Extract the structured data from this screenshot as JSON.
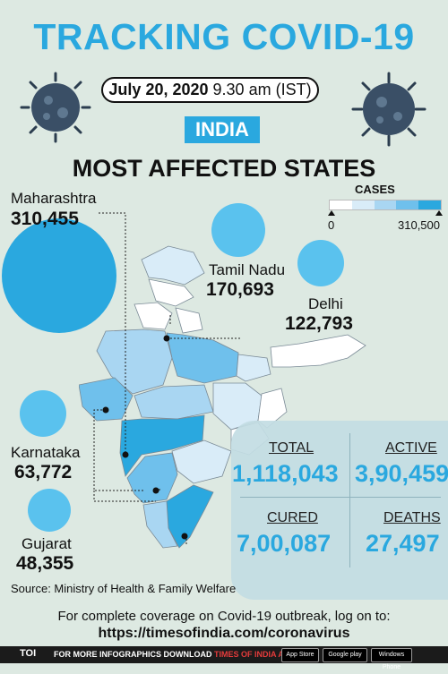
{
  "header": {
    "title": "TRACKING COVID-19",
    "date": "July 20, 2020",
    "time": "9.30 am (IST)",
    "country": "INDIA",
    "subtitle": "MOST AFFECTED STATES"
  },
  "legend": {
    "title": "CASES",
    "min": "0",
    "max": "310,500",
    "colors": [
      "#ffffff",
      "#d9ecf8",
      "#a9d6f2",
      "#6fc0ec",
      "#2aa8df"
    ]
  },
  "states": [
    {
      "name": "Maharashtra",
      "cases": "310,455",
      "cases_value": 310455
    },
    {
      "name": "Tamil Nadu",
      "cases": "170,693",
      "cases_value": 170693
    },
    {
      "name": "Delhi",
      "cases": "122,793",
      "cases_value": 122793
    },
    {
      "name": "Karnataka",
      "cases": "63,772",
      "cases_value": 63772
    },
    {
      "name": "Gujarat",
      "cases": "48,355",
      "cases_value": 48355
    }
  ],
  "stats": {
    "total_label": "TOTAL",
    "total_value": "1,118,043",
    "active_label": "ACTIVE",
    "active_value": "3,90,459",
    "cured_label": "CURED",
    "cured_value": "7,00,087",
    "deaths_label": "DEATHS",
    "deaths_value": "27,497"
  },
  "source": "Source: Ministry of Health & Family Welfare",
  "footer": {
    "line1": "For complete coverage on Covid-19 outbreak, log on to:",
    "url": "https://timesofindia.com/coronavirus"
  },
  "bottom_bar": {
    "brand": "TOI",
    "prefix": "FOR MORE INFOGRAPHICS DOWNLOAD",
    "app": "TIMES OF INDIA APP",
    "stores": [
      "App Store",
      "Google play",
      "Windows Phone"
    ]
  }
}
